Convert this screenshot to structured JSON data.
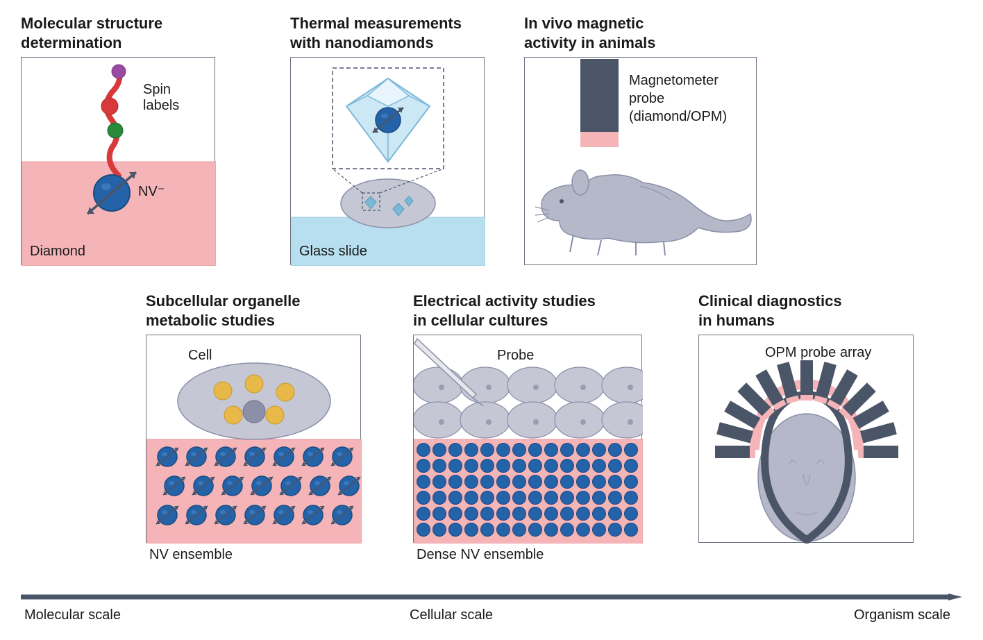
{
  "colors": {
    "border": "#6b7280",
    "pink": "#f5b5b8",
    "pink_border": "#e89aa0",
    "blue_light": "#b8dff0",
    "blue_light_border": "#9accde",
    "nv_blue": "#2563a8",
    "nv_blue_dark": "#1a4a80",
    "arrow_gray": "#4a5568",
    "text": "#1a1a1a",
    "diamond_fill": "#cde8f5",
    "diamond_edge": "#7ab8d8",
    "cell_fill": "#c5c7d4",
    "cell_edge": "#8b8fa8",
    "probe_navy": "#4a5568",
    "probe_pink": "#f5b5b8",
    "spin_red": "#d83a3a",
    "spin_green": "#2a8a3a",
    "spin_purple": "#9a4aa0",
    "yellow": "#e8b948",
    "gray_dot": "#8b8fa8",
    "scale_arrow": "#4a5568"
  },
  "panels": {
    "p1": {
      "title": "Molecular structure\ndetermination",
      "spin_label": "Spin\nlabels",
      "nv_label": "NV⁻",
      "diamond_label": "Diamond"
    },
    "p2": {
      "title": "Thermal measurements\nwith nanodiamonds",
      "glass_label": "Glass slide"
    },
    "p3": {
      "title": "In vivo magnetic\nactivity in animals",
      "probe_label": "Magnetometer\nprobe\n(diamond/OPM)"
    },
    "p4": {
      "title": "Subcellular organelle\nmetabolic studies",
      "cell_label": "Cell",
      "nv_ens_label": "NV ensemble"
    },
    "p5": {
      "title": "Electrical activity studies\nin cellular cultures",
      "probe_label": "Probe",
      "dense_label": "Dense NV ensemble"
    },
    "p6": {
      "title": "Clinical diagnostics\nin humans",
      "array_label": "OPM probe array"
    }
  },
  "scale": {
    "molecular": "Molecular scale",
    "cellular": "Cellular scale",
    "organism": "Organism scale"
  }
}
